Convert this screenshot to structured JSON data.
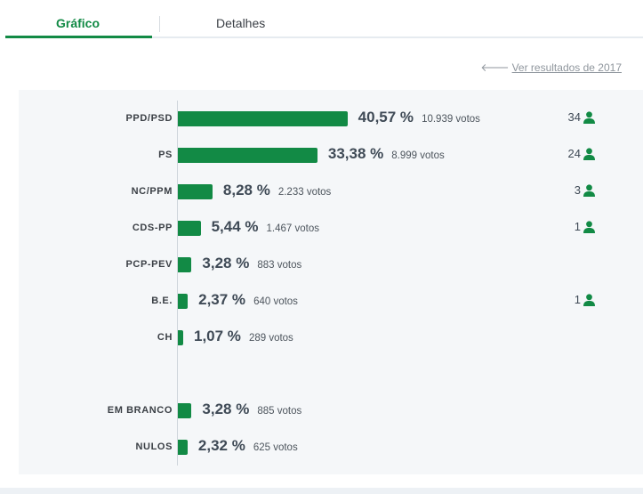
{
  "tabs": [
    {
      "label": "Gráfico",
      "active": true
    },
    {
      "label": "Detalhes",
      "active": false
    }
  ],
  "previous_link": {
    "label": "Ver resultados de 2017",
    "icon": "arrow-left-icon"
  },
  "colors": {
    "accent": "#128a45",
    "text": "#3f4a56",
    "panel": "#f5f7f9"
  },
  "chart_data": {
    "type": "bar",
    "orientation": "horizontal",
    "categories": [
      "PPD/PSD",
      "PS",
      "NC/PPM",
      "CDS-PP",
      "PCP-PEV",
      "B.E.",
      "CH",
      "EM BRANCO",
      "NULOS"
    ],
    "values": [
      40.57,
      33.38,
      8.28,
      5.44,
      3.28,
      2.37,
      1.07,
      3.28,
      2.32
    ],
    "value_labels": [
      "40,57 %",
      "33,38 %",
      "8,28 %",
      "5,44 %",
      "3,28 %",
      "2,37 %",
      "1,07 %",
      "3,28 %",
      "2,32 %"
    ],
    "votes": [
      "10.939 votos",
      "8.999 votos",
      "2.233 votos",
      "1.467 votos",
      "883 votos",
      "640 votos",
      "289 votos",
      "885 votos",
      "625 votos"
    ],
    "seats": [
      "34",
      "24",
      "3",
      "1",
      "",
      "1",
      "",
      "",
      ""
    ],
    "seat_icon": "person-icon",
    "xlim": [
      0,
      100
    ]
  }
}
